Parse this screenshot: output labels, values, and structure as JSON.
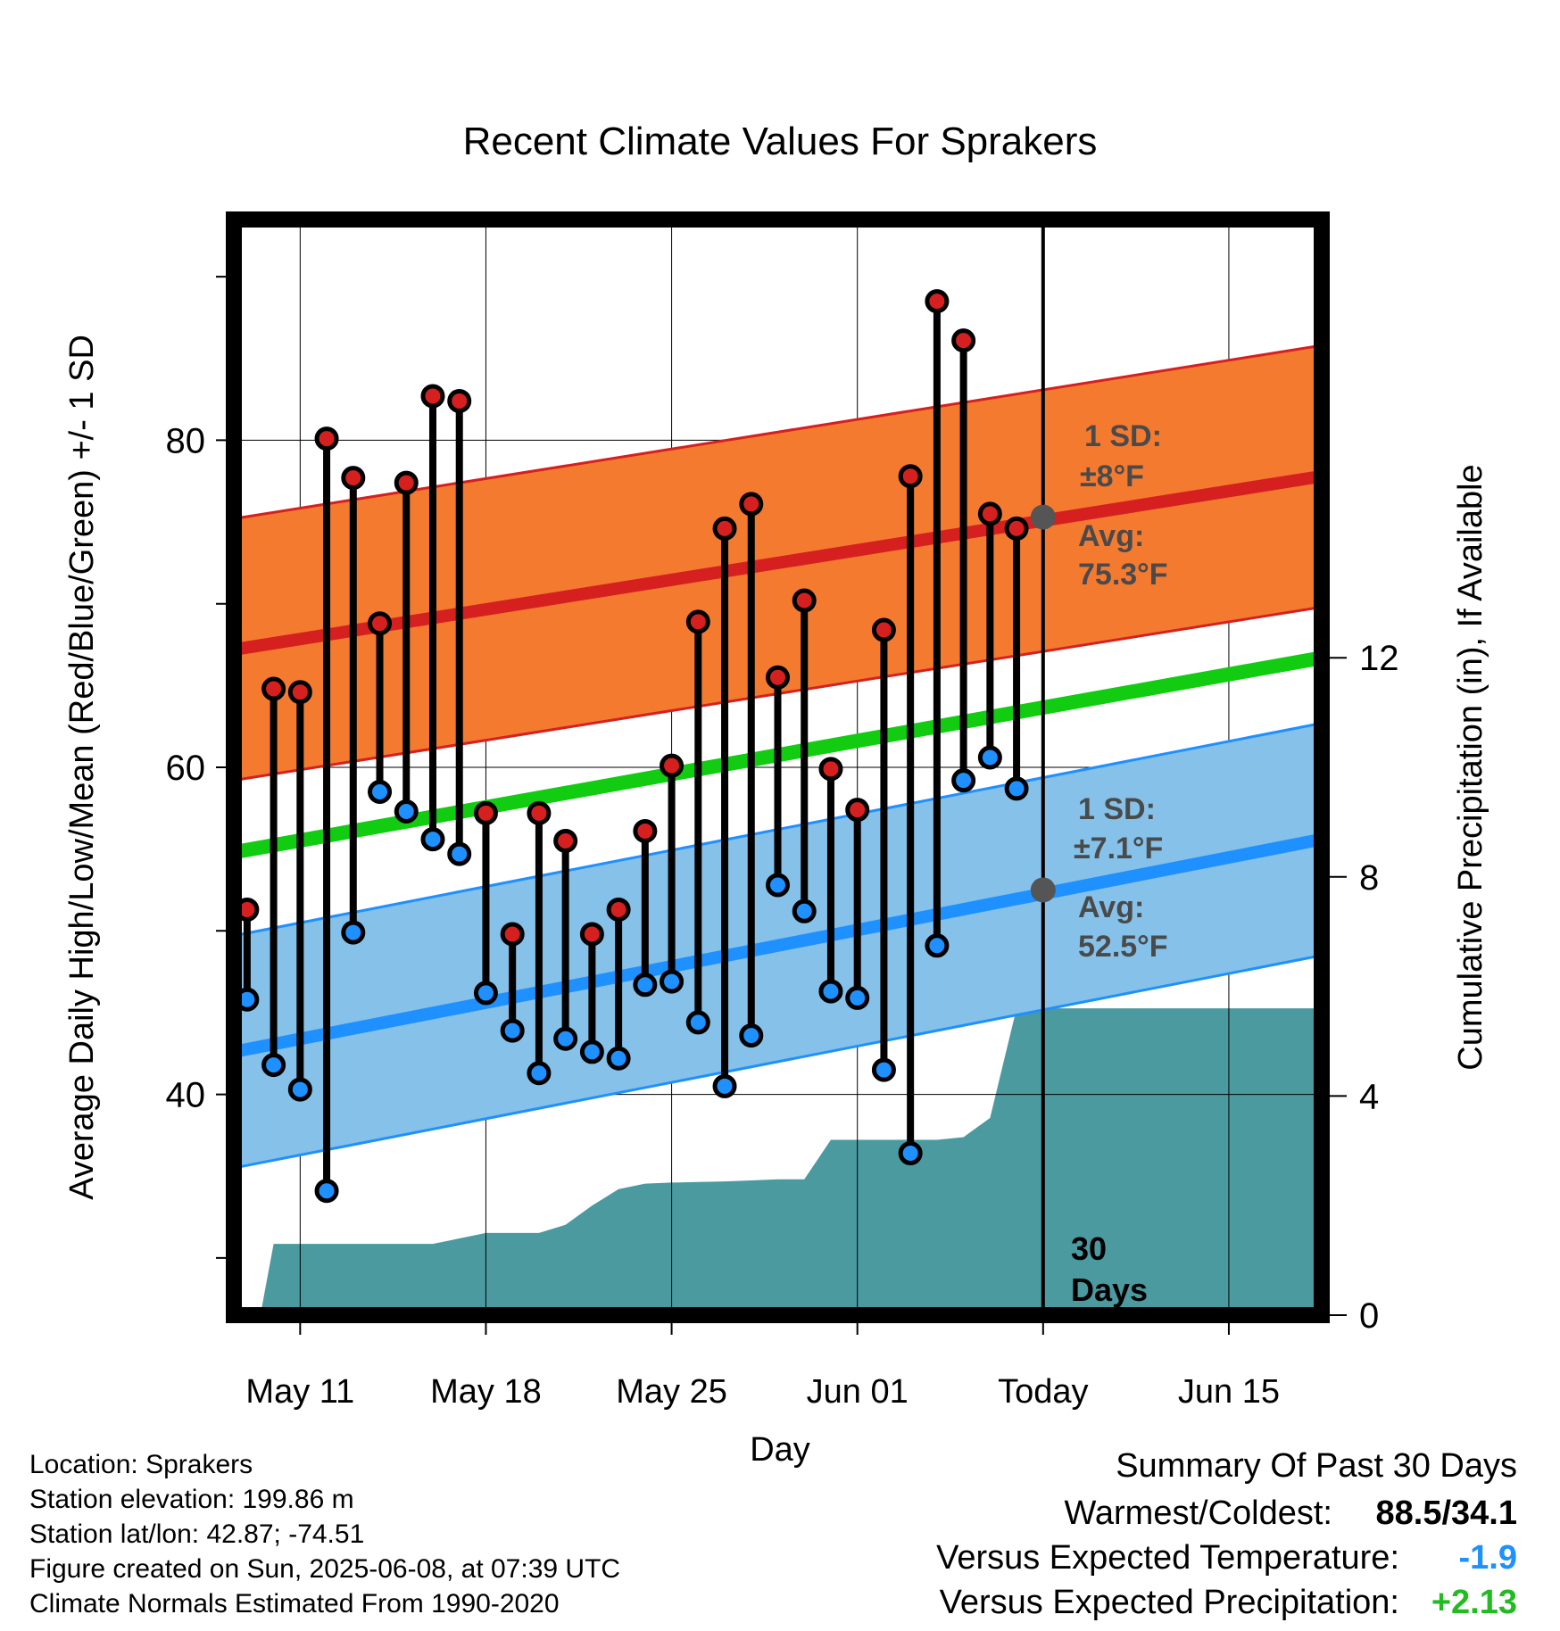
{
  "chart_data": {
    "type": "line",
    "title": "Recent Climate Values For Sprakers",
    "xlabel": "Day",
    "ylabel": "Average Daily High/Low/Mean (Red/Blue/Green) +/- 1 SD",
    "y2label": "Cumulative Precipitation (in), If Available",
    "x_start": "2025-05-08",
    "x_end": "2025-06-19",
    "xlim": [
      0.5,
      41.5
    ],
    "ylim": [
      26.5,
      93.5
    ],
    "y2lim": [
      0,
      20
    ],
    "x_ticks": [
      {
        "day": 3,
        "label": "May 11"
      },
      {
        "day": 10,
        "label": "May 18"
      },
      {
        "day": 17,
        "label": "May 25"
      },
      {
        "day": 24,
        "label": "Jun 01"
      },
      {
        "day": 31,
        "label": "Today"
      },
      {
        "day": 38,
        "label": "Jun 15"
      }
    ],
    "y_ticks": [
      40,
      60,
      80
    ],
    "y_minor_ticks": [
      30,
      50,
      70,
      90
    ],
    "y2_ticks": [
      0,
      4,
      8,
      12
    ],
    "grid": true,
    "today_day": 31,
    "today_label": "30 Days",
    "normals": {
      "high_avg": [
        67.2,
        77.8
      ],
      "high_sd": 8,
      "low_avg": [
        42.6,
        55.6
      ],
      "low_sd": 7.1,
      "mean": [
        54.8,
        66.7
      ]
    },
    "annotations": {
      "high_sd_label": "1 SD:",
      "high_sd_value": "±8°F",
      "high_avg_label": "Avg:",
      "high_avg_value": "75.3°F",
      "low_sd_label": "1 SD:",
      "low_sd_value": "±7.1°F",
      "low_avg_label": "Avg:",
      "low_avg_value": "52.5°F"
    },
    "today_high_avg": 75.3,
    "today_low_avg": 52.5,
    "series": [
      {
        "name": "High",
        "color": "#cc2222",
        "x": [
          1,
          2,
          3,
          4,
          5,
          6,
          7,
          8,
          9,
          10,
          11,
          12,
          13,
          14,
          15,
          16,
          17,
          18,
          19,
          20,
          21,
          22,
          23,
          24,
          25,
          26,
          27,
          28,
          29,
          30
        ],
        "values": [
          51.3,
          64.8,
          64.6,
          80.1,
          77.7,
          68.8,
          77.4,
          82.7,
          82.4,
          57.2,
          49.8,
          57.2,
          55.5,
          49.8,
          51.3,
          56.1,
          60.1,
          68.9,
          74.6,
          76.1,
          65.5,
          70.2,
          59.9,
          57.4,
          68.4,
          77.8,
          88.5,
          86.1,
          75.5,
          74.6
        ]
      },
      {
        "name": "Low",
        "color": "#1e90ff",
        "x": [
          1,
          2,
          3,
          4,
          5,
          6,
          7,
          8,
          9,
          10,
          11,
          12,
          13,
          14,
          15,
          16,
          17,
          18,
          19,
          20,
          21,
          22,
          23,
          24,
          25,
          26,
          27,
          28,
          29,
          30
        ],
        "values": [
          45.8,
          41.8,
          40.3,
          34.1,
          49.9,
          58.5,
          57.3,
          55.6,
          54.7,
          46.2,
          43.9,
          41.3,
          43.4,
          42.6,
          42.2,
          46.7,
          46.9,
          44.4,
          40.5,
          43.6,
          52.8,
          51.2,
          46.3,
          45.9,
          41.5,
          36.4,
          49.1,
          59.2,
          60.6,
          58.7
        ]
      }
    ],
    "precipitation": {
      "color": "#4a9aa0",
      "x": [
        0.5,
        1.5,
        2,
        3,
        4,
        5,
        6,
        7,
        8,
        9,
        10,
        11,
        12,
        13,
        14,
        15,
        16,
        17,
        18,
        19,
        20,
        21,
        22,
        23,
        24,
        25,
        26,
        27,
        28,
        29,
        30,
        31,
        41.5
      ],
      "values": [
        0,
        0,
        1.3,
        1.3,
        1.3,
        1.3,
        1.3,
        1.3,
        1.3,
        1.4,
        1.5,
        1.5,
        1.5,
        1.65,
        2.0,
        2.3,
        2.4,
        2.42,
        2.43,
        2.44,
        2.46,
        2.48,
        2.48,
        3.2,
        3.2,
        3.2,
        3.2,
        3.2,
        3.25,
        3.6,
        5.6,
        5.6,
        5.6
      ]
    }
  },
  "info": {
    "location": "Location: Sprakers",
    "elevation": "Station elevation: 199.86 m",
    "latlon": "Station lat/lon: 42.87; -74.51",
    "created": "Figure created on Sun, 2025-06-08, at 07:39 UTC",
    "normals_note": "Climate Normals Estimated From 1990-2020"
  },
  "summary": {
    "title": "Summary Of Past 30 Days",
    "warmest_coldest_label": "Warmest/Coldest:",
    "warmest_coldest_value": "88.5/34.1",
    "temp_label": "Versus Expected Temperature:",
    "temp_value": "-1.9",
    "temp_color": "#1e90ff",
    "precip_label": "Versus Expected Precipitation:",
    "precip_value": "+2.13",
    "precip_color": "#22bb22"
  }
}
